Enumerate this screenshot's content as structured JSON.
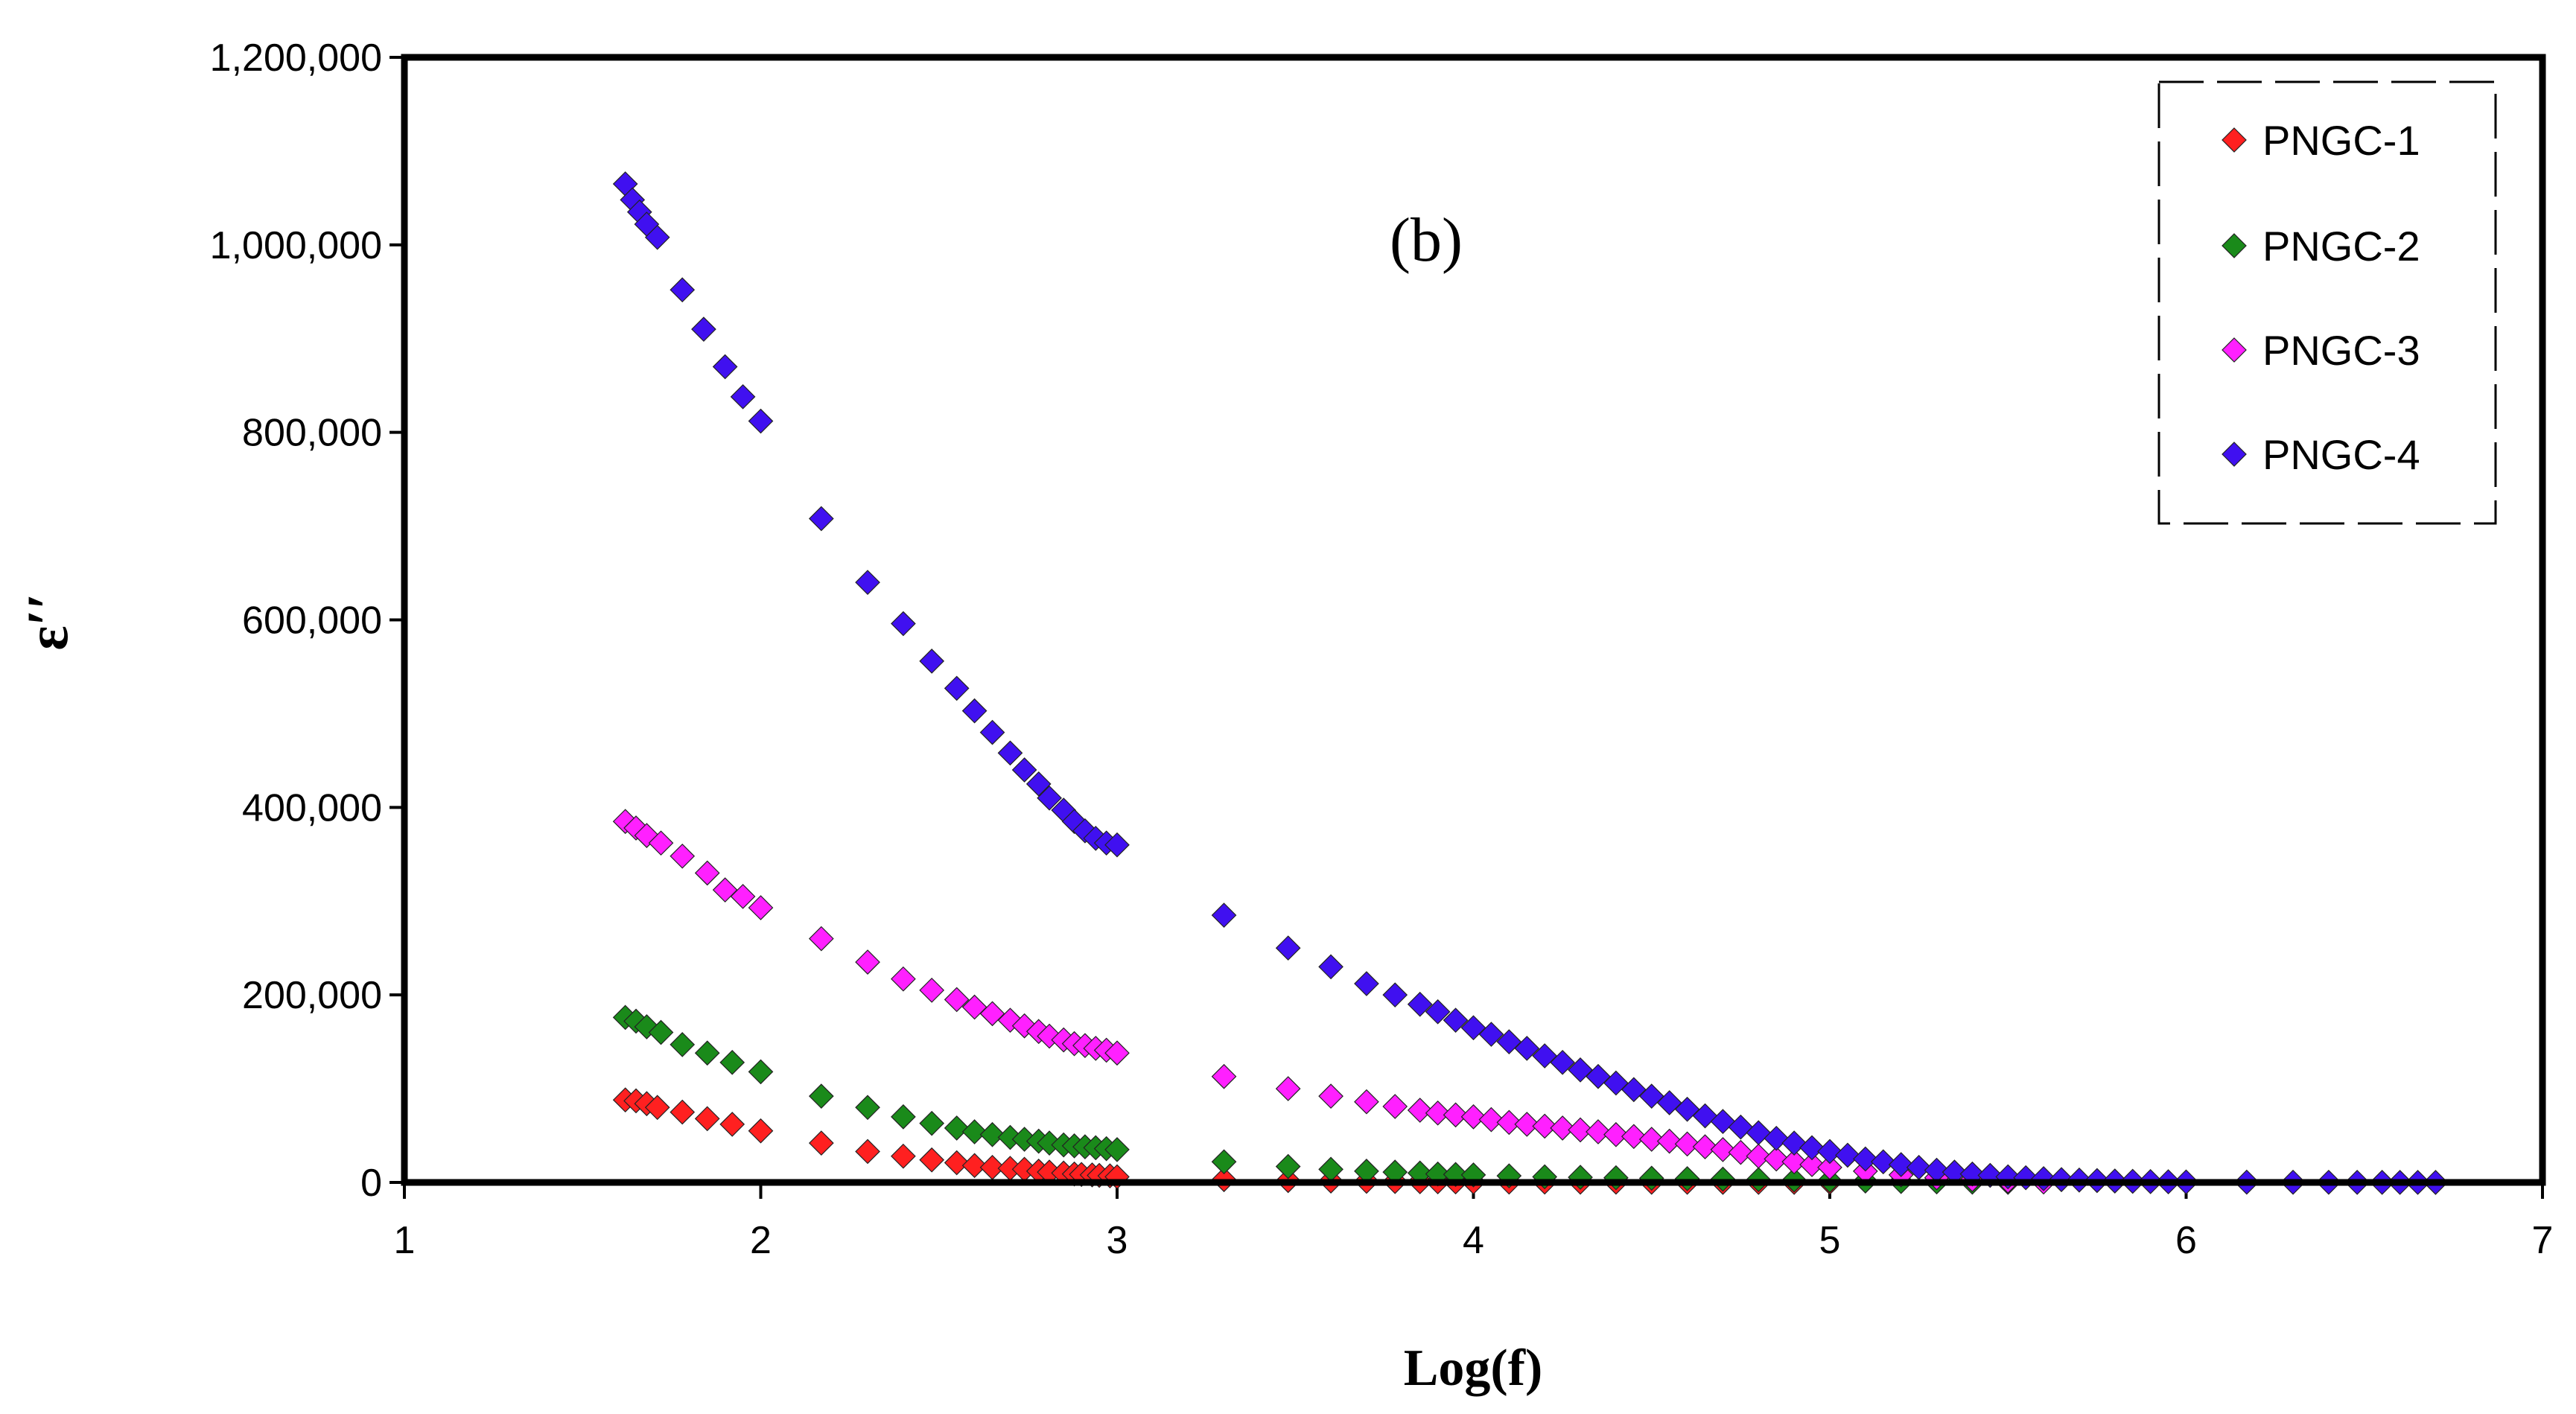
{
  "chart_data": {
    "type": "scatter",
    "annotation": "(b)",
    "xlabel": "Log(f)",
    "ylabel": "ε′′",
    "xlim": [
      1,
      7
    ],
    "ylim": [
      0,
      1200000
    ],
    "xticks": [
      1,
      2,
      3,
      4,
      5,
      6,
      7
    ],
    "yticks": [
      0,
      200000,
      400000,
      600000,
      800000,
      1000000,
      1200000
    ],
    "xtick_labels": [
      "1",
      "2",
      "3",
      "4",
      "5",
      "6",
      "7"
    ],
    "ytick_labels": [
      "0",
      "200,000",
      "400,000",
      "600,000",
      "800,000",
      "1,000,000",
      "1,200,000"
    ],
    "legend_position": "top-right",
    "marker": "diamond",
    "series": [
      {
        "name": "PNGC-1",
        "color": "#ff2020",
        "x": [
          1.62,
          1.65,
          1.68,
          1.71,
          1.78,
          1.85,
          1.92,
          2.0,
          2.17,
          2.3,
          2.4,
          2.48,
          2.55,
          2.6,
          2.65,
          2.7,
          2.74,
          2.78,
          2.81,
          2.85,
          2.88,
          2.9,
          2.93,
          2.95,
          2.98,
          3.0,
          3.3,
          3.48,
          3.6,
          3.7,
          3.78,
          3.85,
          3.9,
          3.95,
          4.0,
          4.1,
          4.2,
          4.3,
          4.4,
          4.5,
          4.6,
          4.7,
          4.8,
          4.9,
          5.0
        ],
        "y": [
          88000,
          87000,
          84000,
          80000,
          75000,
          68000,
          62000,
          55000,
          42000,
          33000,
          28000,
          24000,
          21000,
          18000,
          16000,
          15000,
          14000,
          12000,
          11000,
          10000,
          9000,
          8500,
          8000,
          7500,
          7000,
          6000,
          3000,
          2000,
          1500,
          1200,
          1000,
          800,
          700,
          600,
          500,
          400,
          350,
          300,
          250,
          200,
          150,
          120,
          100,
          80,
          50
        ]
      },
      {
        "name": "PNGC-2",
        "color": "#1a8a1a",
        "x": [
          1.62,
          1.65,
          1.68,
          1.72,
          1.78,
          1.85,
          1.92,
          2.0,
          2.17,
          2.3,
          2.4,
          2.48,
          2.55,
          2.6,
          2.65,
          2.7,
          2.74,
          2.78,
          2.81,
          2.85,
          2.88,
          2.91,
          2.94,
          2.97,
          3.0,
          3.3,
          3.48,
          3.6,
          3.7,
          3.78,
          3.85,
          3.9,
          3.95,
          4.0,
          4.1,
          4.2,
          4.3,
          4.4,
          4.5,
          4.6,
          4.7,
          4.8,
          4.9,
          5.0,
          5.1,
          5.2,
          5.3,
          5.4,
          5.5
        ],
        "y": [
          176000,
          172000,
          166000,
          160000,
          147000,
          138000,
          128000,
          118000,
          92000,
          80000,
          70000,
          63000,
          58000,
          54000,
          51000,
          48000,
          46000,
          44000,
          42000,
          40000,
          39000,
          38000,
          37000,
          36000,
          35000,
          22000,
          17000,
          14000,
          12000,
          11000,
          10000,
          9000,
          8500,
          8000,
          7000,
          6000,
          5500,
          5000,
          4500,
          4000,
          3500,
          3000,
          2500,
          2000,
          1500,
          1000,
          600,
          300,
          100
        ]
      },
      {
        "name": "PNGC-3",
        "color": "#ff20ff",
        "x": [
          1.62,
          1.65,
          1.68,
          1.72,
          1.78,
          1.85,
          1.9,
          1.95,
          2.0,
          2.17,
          2.3,
          2.4,
          2.48,
          2.55,
          2.6,
          2.65,
          2.7,
          2.74,
          2.78,
          2.81,
          2.85,
          2.88,
          2.91,
          2.94,
          2.97,
          3.0,
          3.3,
          3.48,
          3.6,
          3.7,
          3.78,
          3.85,
          3.9,
          3.95,
          4.0,
          4.05,
          4.1,
          4.15,
          4.2,
          4.25,
          4.3,
          4.35,
          4.4,
          4.45,
          4.5,
          4.55,
          4.6,
          4.65,
          4.7,
          4.75,
          4.8,
          4.85,
          4.9,
          4.95,
          5.0,
          5.1,
          5.2,
          5.3,
          5.4,
          5.5,
          5.6
        ],
        "y": [
          385000,
          378000,
          370000,
          362000,
          348000,
          330000,
          312000,
          305000,
          293000,
          260000,
          235000,
          217000,
          205000,
          195000,
          187000,
          180000,
          173000,
          167000,
          161000,
          156000,
          152000,
          148000,
          146000,
          143000,
          141000,
          138000,
          113000,
          100000,
          92000,
          86000,
          81000,
          77000,
          74000,
          72000,
          70000,
          67000,
          64000,
          62000,
          60000,
          58000,
          56000,
          54000,
          51000,
          49000,
          46000,
          44000,
          41000,
          38000,
          35000,
          32000,
          28000,
          25000,
          22000,
          19000,
          16000,
          12000,
          8000,
          5000,
          3000,
          1500,
          500
        ]
      },
      {
        "name": "PNGC-4",
        "color": "#4010f0",
        "x": [
          1.62,
          1.64,
          1.66,
          1.68,
          1.71,
          1.78,
          1.84,
          1.9,
          1.95,
          2.0,
          2.17,
          2.3,
          2.4,
          2.48,
          2.55,
          2.6,
          2.65,
          2.7,
          2.74,
          2.78,
          2.81,
          2.85,
          2.88,
          2.91,
          2.94,
          2.97,
          3.0,
          3.3,
          3.48,
          3.6,
          3.7,
          3.78,
          3.85,
          3.9,
          3.95,
          4.0,
          4.05,
          4.1,
          4.15,
          4.2,
          4.25,
          4.3,
          4.35,
          4.4,
          4.45,
          4.5,
          4.55,
          4.6,
          4.65,
          4.7,
          4.75,
          4.8,
          4.85,
          4.9,
          4.95,
          5.0,
          5.05,
          5.1,
          5.15,
          5.2,
          5.25,
          5.3,
          5.35,
          5.4,
          5.45,
          5.5,
          5.55,
          5.6,
          5.65,
          5.7,
          5.75,
          5.8,
          5.85,
          5.9,
          5.95,
          6.0,
          6.17,
          6.3,
          6.4,
          6.48,
          6.55,
          6.6,
          6.65,
          6.7
        ],
        "y": [
          1065000,
          1048000,
          1035000,
          1022000,
          1008000,
          952000,
          910000,
          870000,
          838000,
          812000,
          708000,
          640000,
          596000,
          556000,
          527000,
          503000,
          480000,
          458000,
          440000,
          425000,
          410000,
          397000,
          385000,
          375000,
          367000,
          362000,
          360000,
          285000,
          250000,
          230000,
          212000,
          200000,
          190000,
          182000,
          173000,
          165000,
          158000,
          150000,
          143000,
          135000,
          128000,
          120000,
          113000,
          106000,
          99000,
          92000,
          85000,
          78000,
          71000,
          65000,
          59000,
          53000,
          47000,
          42000,
          37000,
          33000,
          29000,
          25000,
          22000,
          19000,
          16000,
          13000,
          11000,
          9000,
          7500,
          6000,
          5000,
          4000,
          3000,
          2500,
          2000,
          1500,
          1200,
          900,
          700,
          500,
          300,
          200,
          150,
          100,
          80,
          60,
          40,
          20
        ]
      }
    ]
  }
}
